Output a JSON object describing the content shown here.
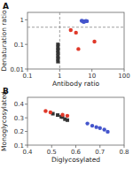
{
  "chart_data": [
    {
      "type": "scatter",
      "title": "A",
      "x_label": "Antibody ratio",
      "y_label": "Denaturation ratio",
      "log": true,
      "xlim": [
        0.1,
        100
      ],
      "ylim": [
        0.01,
        2.0
      ],
      "xticks": [
        0.1,
        1,
        10,
        100
      ],
      "yticks": [
        0.01,
        0.1,
        1
      ],
      "hlines": [
        0.5
      ],
      "vlines": [
        1.0
      ],
      "series": [
        {
          "color": "#333333",
          "marker": "square",
          "x": [
            0.88,
            0.88,
            0.88,
            0.88,
            0.88,
            0.88,
            0.88
          ],
          "values": [
            0.1,
            0.075,
            0.058,
            0.045,
            0.034,
            0.026,
            0.02
          ]
        },
        {
          "color": "#e0392a",
          "marker": "circle",
          "x": [
            2.2,
            3.2,
            12.0,
            3.8
          ],
          "values": [
            0.38,
            0.3,
            0.13,
            0.065
          ]
        },
        {
          "color": "#4455cc",
          "marker": "circle",
          "x": [
            4.8,
            5.2,
            5.5,
            6.0,
            6.5,
            7.0
          ],
          "values": [
            0.92,
            0.88,
            0.82,
            0.85,
            0.9,
            0.88
          ]
        }
      ]
    },
    {
      "type": "scatter",
      "title": "B",
      "x_label": "Diglycosylated",
      "y_label": "Monoglycosylated",
      "xlim": [
        0.4,
        0.8
      ],
      "ylim": [
        0.1,
        0.45
      ],
      "xticks": [
        0.4,
        0.5,
        0.6,
        0.7,
        0.8
      ],
      "yticks": [
        0.1,
        0.2,
        0.3,
        0.4
      ],
      "series": [
        {
          "color": "#333333",
          "marker": "square",
          "x": [
            0.505,
            0.525,
            0.545,
            0.555,
            0.565,
            0.54
          ],
          "values": [
            0.33,
            0.32,
            0.305,
            0.29,
            0.283,
            0.308
          ]
        },
        {
          "color": "#e0392a",
          "marker": "circle",
          "x": [
            0.475,
            0.495,
            0.545,
            0.565
          ],
          "values": [
            0.35,
            0.34,
            0.322,
            0.315
          ]
        },
        {
          "color": "#4455cc",
          "marker": "circle",
          "x": [
            0.648,
            0.668,
            0.685,
            0.7,
            0.718,
            0.732
          ],
          "values": [
            0.258,
            0.242,
            0.232,
            0.225,
            0.213,
            0.198
          ]
        }
      ]
    }
  ]
}
